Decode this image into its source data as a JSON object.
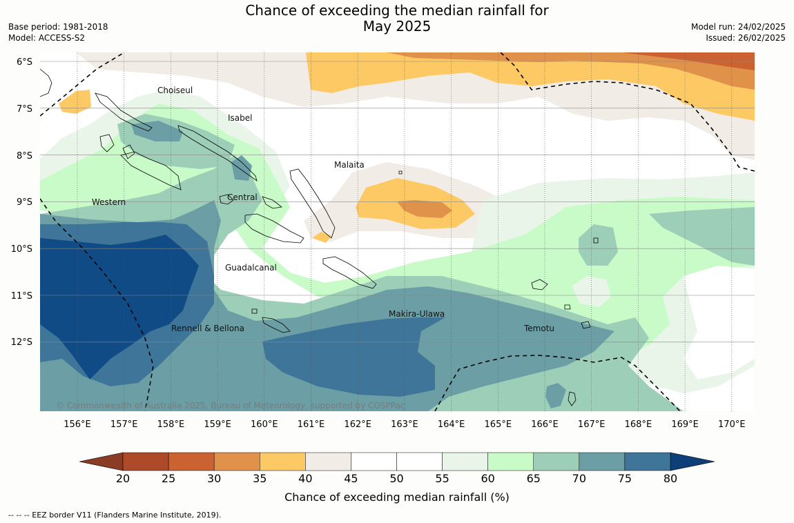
{
  "header": {
    "title_line1": "Chance of exceeding the median rainfall for",
    "title_line2": "May 2025",
    "base_period": "Base period: 1981-2018",
    "model": "Model: ACCESS-S2",
    "model_run": "Model run: 24/02/2025",
    "issued": "Issued: 26/02/2025"
  },
  "map": {
    "lat_labels": [
      "6°S",
      "7°S",
      "8°S",
      "9°S",
      "10°S",
      "11°S",
      "12°S"
    ],
    "lon_labels": [
      "156°E",
      "157°E",
      "158°E",
      "159°E",
      "160°E",
      "161°E",
      "162°E",
      "163°E",
      "164°E",
      "165°E",
      "166°E",
      "167°E",
      "168°E",
      "169°E",
      "170°E"
    ],
    "regions": [
      "Choiseul",
      "Isabel",
      "Malaita",
      "Western",
      "Central",
      "Guadalcanal",
      "Makira-Ulawa",
      "Rennell & Bellona",
      "Temotu"
    ],
    "copyright": "© Commonwealth of Australia 2025, Bureau of Meteorology, supported by COSPPac"
  },
  "colorbar": {
    "ticks": [
      "20",
      "25",
      "30",
      "35",
      "40",
      "45",
      "50",
      "55",
      "60",
      "65",
      "70",
      "75",
      "80"
    ],
    "colors": [
      "#ad4a2a",
      "#cb6232",
      "#e0914a",
      "#fdc965",
      "#f2ece6",
      "#ffffff",
      "#ffffff",
      "#eaf5ea",
      "#c9fbc8",
      "#9dceb8",
      "#6c9fa5",
      "#3e7598",
      "#114b85"
    ],
    "under_color": "#8a3d24",
    "over_color": "#0e3f78",
    "label": "Chance of exceeding median rainfall (%)"
  },
  "footnote": "--  --  -- EEZ border V11 (Flanders Marine Institute, 2019)."
}
